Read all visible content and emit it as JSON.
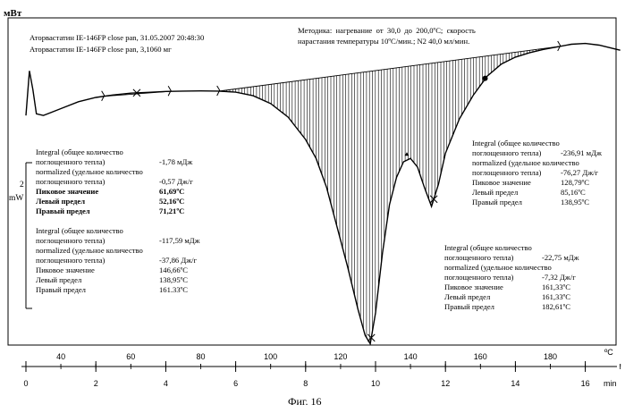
{
  "header": {
    "unit_label": "мВт",
    "sample_lines": [
      "Аторвастатин IE-146FP close pan, 31.05.2007 20:48:30",
      "Аторвастатин IE-146FP close pan, 3,1060 мг"
    ],
    "method_lines": [
      "Методика:  нагревание  от  30,0  до  200,0ºC;  скорость",
      "нарастания температуры 10ºC/мин.; N2 40,0 мл/мин."
    ]
  },
  "scale_bar": {
    "value": "2",
    "unit": "mW"
  },
  "footer": {
    "caption": "Фиг. 16"
  },
  "integrals": [
    {
      "lines": [
        [
          "Integral  (общее количество",
          ""
        ],
        [
          "поглощенного тепла)",
          "-1,78 мДж"
        ],
        [
          "normalized  (удельное количество",
          ""
        ],
        [
          "поглощенного тепла)",
          "-0,57 Дж/г"
        ],
        [
          "Пиковое значение",
          "61,69ºC"
        ],
        [
          "Левый предел",
          "52,16ºC"
        ],
        [
          "Правый предел",
          "71,21ºC"
        ]
      ]
    },
    {
      "lines": [
        [
          "Integral  (общее количество",
          ""
        ],
        [
          "поглощенного тепла)",
          "-117,59 мДж"
        ],
        [
          "normalized  (удельное количество",
          ""
        ],
        [
          "поглощенного тепла)",
          "-37,86 Дж/г"
        ],
        [
          "Пиковое значение",
          "146,66ºC"
        ],
        [
          "Левый предел",
          "138,95ºC"
        ],
        [
          "Правый предел",
          "161.33ºC"
        ]
      ]
    },
    {
      "lines": [
        [
          "Integral  (общее количество",
          ""
        ],
        [
          "поглощенного тепла)",
          "-236,91 мДж"
        ],
        [
          "normalized  (удельное количество",
          ""
        ],
        [
          "поглощенного тепла)",
          "-76,27 Дж/г"
        ],
        [
          "Пиковое значение",
          "128,79ºC"
        ],
        [
          "Левый предел",
          "85,16ºC"
        ],
        [
          "Правый предел",
          "138,95ºC"
        ]
      ]
    },
    {
      "lines": [
        [
          "Integral  (общее количество",
          ""
        ],
        [
          "поглощенного тепла)",
          "-22,75 мДж"
        ],
        [
          "normalized  (удельное количество",
          ""
        ],
        [
          "поглощенного тепла)",
          "-7,32 Дж/г"
        ],
        [
          "Пиковое значение",
          "161,33ºC"
        ],
        [
          "Левый предел",
          "161,33ºC"
        ],
        [
          "Правый предел",
          "182,61ºC"
        ]
      ]
    }
  ],
  "chart_data": {
    "type": "line",
    "title": "",
    "ylabel": "мВт",
    "x_time_unit": "min",
    "x_temp_unit": "ºC",
    "time_ticks": [
      0,
      2,
      4,
      6,
      8,
      10,
      12,
      14,
      16
    ],
    "temp_ticks": [
      40,
      60,
      80,
      100,
      120,
      140,
      160,
      180
    ],
    "xlim_min": [
      0,
      17
    ],
    "series": [
      {
        "x": [
          0,
          0.1,
          0.2,
          0.3,
          0.5,
          1,
          1.5,
          2,
          2.5,
          3,
          3.5,
          4,
          4.5,
          5,
          5.5,
          6,
          6.5,
          7,
          7.5,
          8,
          8.3,
          8.6,
          8.9,
          9.2,
          9.5,
          9.7,
          9.85,
          10,
          10.2,
          10.4,
          10.6,
          10.8,
          11.0,
          11.2,
          11.4,
          11.6,
          11.8,
          12.0,
          12.4,
          12.8,
          13.2,
          13.6,
          14.0,
          14.4,
          14.8,
          15.2,
          15.6,
          16.0,
          16.4,
          16.8,
          17.0
        ],
        "y": [
          -1,
          1.6,
          0.5,
          -0.9,
          -1.0,
          -0.6,
          -0.2,
          0.05,
          0.2,
          0.3,
          0.35,
          0.4,
          0.42,
          0.43,
          0.42,
          0.36,
          0.15,
          -0.3,
          -1.1,
          -2.4,
          -3.5,
          -5.2,
          -7.5,
          -9.8,
          -12.3,
          -13.8,
          -14.3,
          -12.5,
          -9.0,
          -6.2,
          -4.6,
          -3.7,
          -3.5,
          -4.0,
          -5.2,
          -6.3,
          -5.0,
          -3.2,
          -1.2,
          0.2,
          1.3,
          2.0,
          2.4,
          2.65,
          2.85,
          3.0,
          3.15,
          3.2,
          3.1,
          2.9,
          2.8
        ]
      }
    ]
  }
}
